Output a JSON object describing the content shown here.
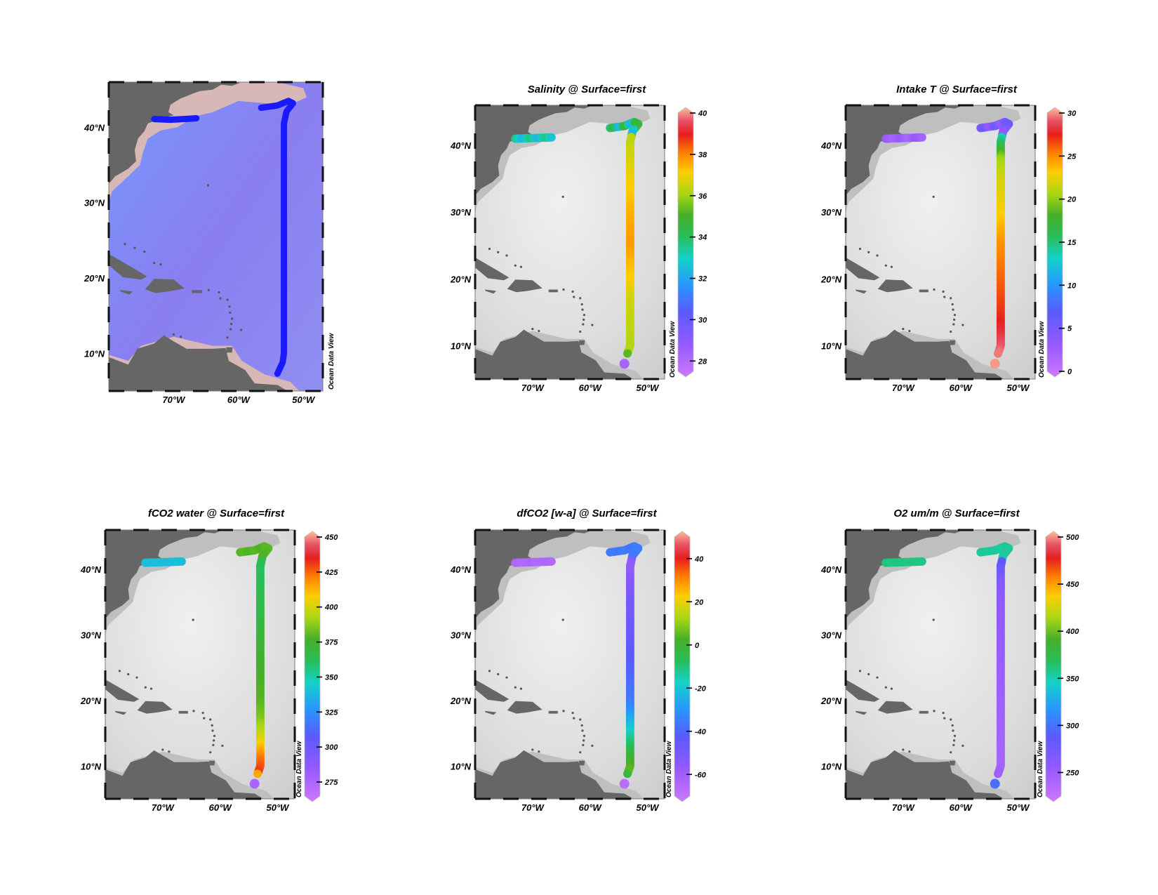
{
  "watermark": "Ocean Data View",
  "lat_labels": [
    "40°N",
    "30°N",
    "20°N",
    "10°N"
  ],
  "lat_values": [
    40,
    30,
    20,
    10
  ],
  "lon_labels": [
    "70°W",
    "60°W",
    "50°W"
  ],
  "lon_values": [
    -70,
    -60,
    -50
  ],
  "map_extent": {
    "lon": [
      -80,
      -47
    ],
    "lat": [
      5,
      46
    ]
  },
  "track": {
    "east_leg": [
      [
        -56.5,
        42.6
      ],
      [
        -54,
        42.9
      ],
      [
        -52.3,
        43.5
      ],
      [
        -51.6,
        43.2
      ],
      [
        -52.6,
        42.1
      ],
      [
        -53.0,
        40.5
      ],
      [
        -53.0,
        10.0
      ],
      [
        -53.2,
        8.8
      ],
      [
        -54.0,
        7.3
      ]
    ],
    "west_leg": [
      [
        -73.0,
        41.1
      ],
      [
        -70.5,
        41.0
      ],
      [
        -68.5,
        41.1
      ],
      [
        -66.5,
        41.2
      ]
    ]
  },
  "colors": {
    "track_blue": "#1a1aff",
    "ocean": "#8888ee",
    "land": "#6b6b6b",
    "shelf": "#e8c0a8"
  },
  "panels": [
    {
      "id": "track-map",
      "title": "",
      "colorbar": null
    },
    {
      "id": "salinity",
      "title": "Salinity @ Surface=first",
      "colorbar": {
        "min": 27.5,
        "max": 40,
        "ticks": [
          28,
          30,
          32,
          34,
          36,
          38,
          40
        ]
      },
      "profile": {
        "west": 33.0,
        "north": 33.5,
        "values": [
          [
            43,
            36.0
          ],
          [
            40,
            36.3
          ],
          [
            35,
            36.8
          ],
          [
            30,
            37.3
          ],
          [
            25,
            37.6
          ],
          [
            20,
            37.0
          ],
          [
            17,
            36.5
          ],
          [
            14,
            36.3
          ],
          [
            11,
            36.2
          ],
          [
            9,
            36.0
          ],
          [
            7.3,
            28.5
          ]
        ]
      }
    },
    {
      "id": "intake-t",
      "title": "Intake T @ Surface=first",
      "colorbar": {
        "min": 0,
        "max": 30,
        "ticks": [
          0,
          5,
          10,
          15,
          20,
          25,
          30
        ]
      },
      "profile": {
        "west": 3.0,
        "north": 5.0,
        "values": [
          [
            43,
            8.0
          ],
          [
            41,
            14.0
          ],
          [
            38,
            20.0
          ],
          [
            35,
            21.5
          ],
          [
            30,
            22.5
          ],
          [
            25,
            24.5
          ],
          [
            20,
            25.5
          ],
          [
            15,
            26.5
          ],
          [
            12,
            27.5
          ],
          [
            9,
            29.0
          ],
          [
            7.3,
            29.5
          ]
        ]
      }
    },
    {
      "id": "fco2-water",
      "title": "fCO2 water @ Surface=first",
      "colorbar": {
        "min": 265,
        "max": 450,
        "ticks": [
          275,
          300,
          325,
          350,
          375,
          400,
          425,
          450
        ]
      },
      "profile": {
        "west": 340.0,
        "north": 378.0,
        "values": [
          [
            43,
            372
          ],
          [
            40,
            360
          ],
          [
            35,
            365
          ],
          [
            30,
            370
          ],
          [
            25,
            375
          ],
          [
            20,
            378
          ],
          [
            17,
            385
          ],
          [
            14,
            400
          ],
          [
            11,
            420
          ],
          [
            9,
            428
          ],
          [
            7.3,
            280
          ]
        ]
      }
    },
    {
      "id": "dfco2",
      "title": "dfCO2 [w-a] @ Surface=first",
      "colorbar": {
        "min": -70,
        "max": 50,
        "ticks": [
          -60,
          -40,
          -20,
          0,
          20,
          40
        ]
      },
      "profile": {
        "west": -62.0,
        "north": -35.0,
        "values": [
          [
            43,
            -50
          ],
          [
            40,
            -55
          ],
          [
            35,
            -48
          ],
          [
            30,
            -45
          ],
          [
            25,
            -40
          ],
          [
            20,
            -35
          ],
          [
            17,
            -25
          ],
          [
            14,
            -12
          ],
          [
            11,
            0
          ],
          [
            9,
            5
          ],
          [
            7.3,
            -65
          ]
        ]
      }
    },
    {
      "id": "o2",
      "title": "O2 um/m @ Surface=first",
      "colorbar": {
        "min": 225,
        "max": 500,
        "ticks": [
          250,
          300,
          350,
          400,
          450,
          500
        ]
      },
      "profile": {
        "west": 360.0,
        "north": 355.0,
        "values": [
          [
            43,
            320
          ],
          [
            41,
            290
          ],
          [
            38,
            270
          ],
          [
            35,
            262
          ],
          [
            30,
            258
          ],
          [
            25,
            255
          ],
          [
            20,
            252
          ],
          [
            15,
            250
          ],
          [
            10,
            248
          ],
          [
            8,
            255
          ],
          [
            7.3,
            300
          ]
        ]
      }
    }
  ]
}
